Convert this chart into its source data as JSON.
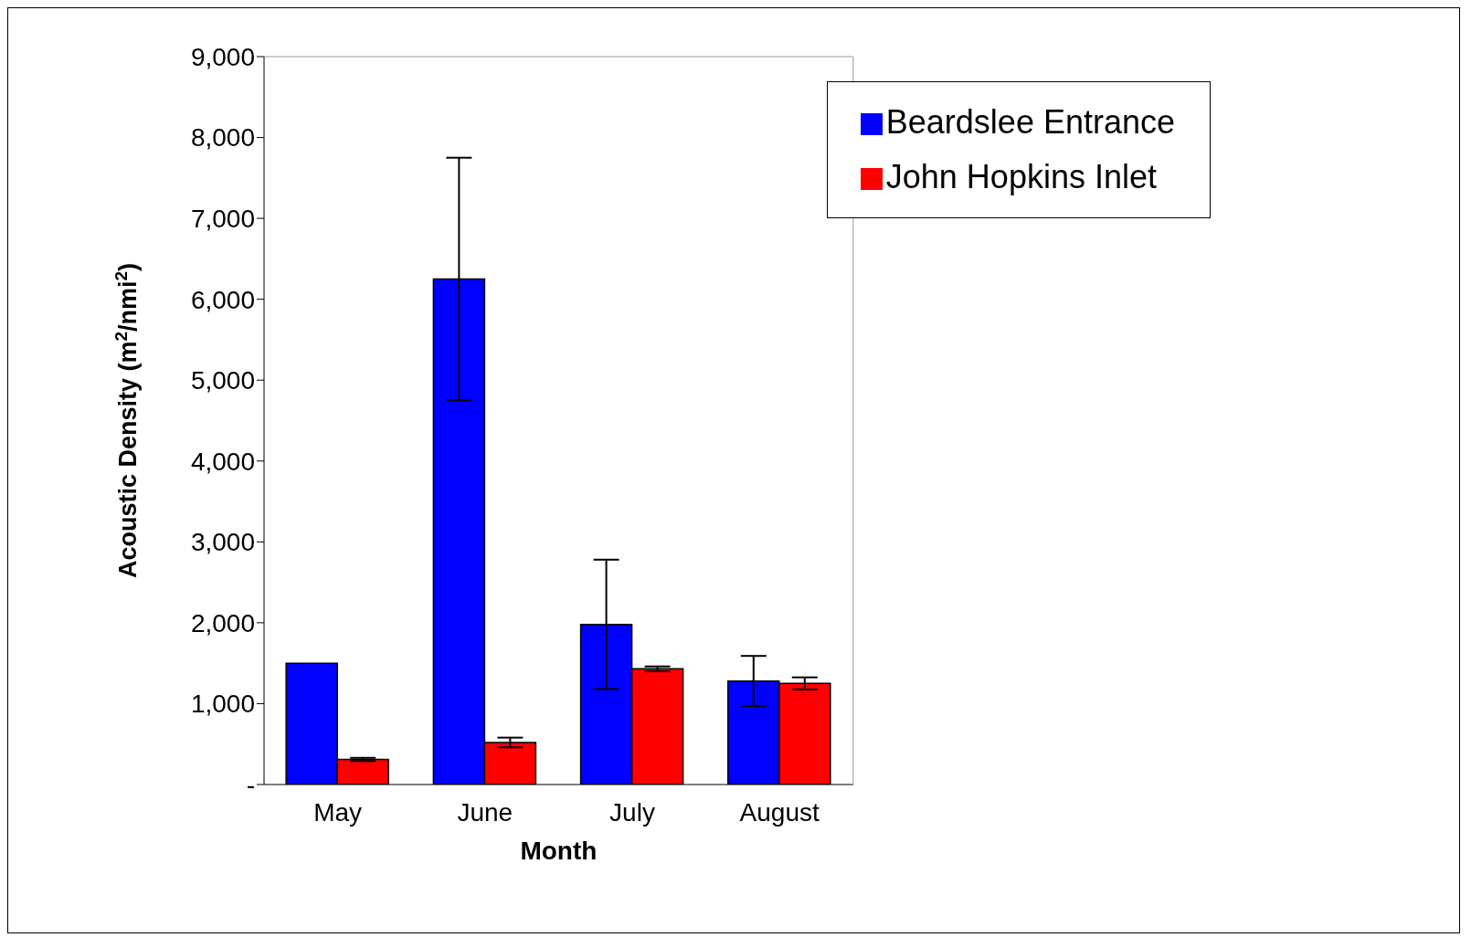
{
  "chart_data": {
    "type": "bar",
    "xlabel": "Month",
    "ylabel": "Acoustic Density (m$^{2}$/nmi$^{2}$)",
    "categories": [
      "May",
      "June",
      "July",
      "August"
    ],
    "series": [
      {
        "name": "Beardslee Entrance",
        "color": "#0000ff",
        "values": [
          1500,
          6250,
          1980,
          1280
        ],
        "errors": [
          null,
          1500,
          800,
          310
        ]
      },
      {
        "name": "John Hopkins Inlet",
        "color": "#ff0000",
        "values": [
          310,
          520,
          1430,
          1250
        ],
        "errors": [
          20,
          60,
          30,
          75
        ]
      }
    ],
    "ylim": [
      0,
      9000
    ],
    "yticks": [
      {
        "value": 0,
        "label": "-"
      },
      {
        "value": 1000,
        "label": "1,000"
      },
      {
        "value": 2000,
        "label": "2,000"
      },
      {
        "value": 3000,
        "label": "3,000"
      },
      {
        "value": 4000,
        "label": "4,000"
      },
      {
        "value": 5000,
        "label": "5,000"
      },
      {
        "value": 6000,
        "label": "6,000"
      },
      {
        "value": 7000,
        "label": "7,000"
      },
      {
        "value": 8000,
        "label": "8,000"
      },
      {
        "value": 9000,
        "label": "9,000"
      }
    ],
    "grid": false,
    "legend": "top right"
  }
}
